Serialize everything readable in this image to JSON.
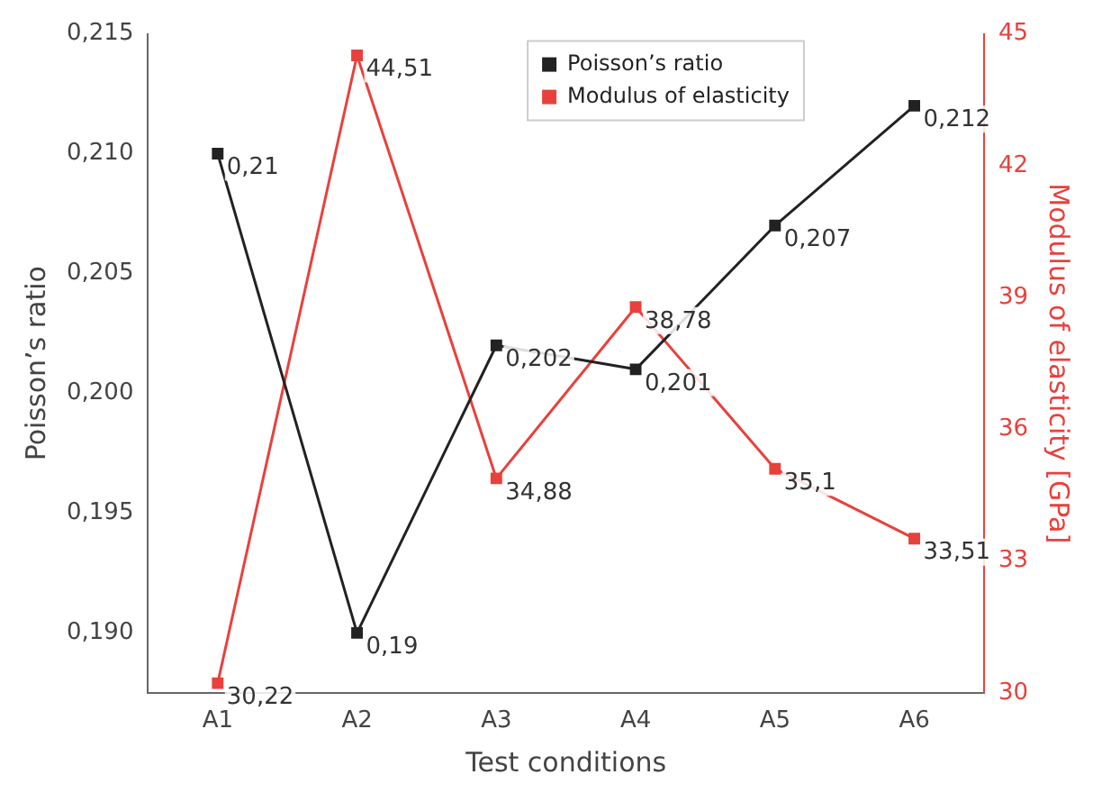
{
  "chart_data": {
    "type": "line",
    "xlabel": "Test conditions",
    "ylabel": "Poisson’s ratio",
    "y2label": "Modulus of elasticity [GPa]",
    "categories": [
      "A1",
      "A2",
      "A3",
      "A4",
      "A5",
      "A6"
    ],
    "series": [
      {
        "name": "Poisson’s ratio",
        "color": "#222222",
        "values": [
          0.21,
          0.19,
          0.202,
          0.201,
          0.207,
          0.212
        ],
        "value_labels": [
          "0,21",
          "0,19",
          "0,202",
          "0,201",
          "0,207",
          "0,212"
        ]
      },
      {
        "name": "Modulus of elasticity",
        "color": "#e8413c",
        "axis": "y2",
        "values": [
          30.22,
          44.51,
          34.88,
          38.78,
          35.1,
          33.51
        ],
        "value_labels": [
          "30,22",
          "44,51",
          "34,88",
          "38,78",
          "35,1",
          "33,51"
        ]
      }
    ],
    "ylim": [
      0.1875,
      0.215
    ],
    "yticks": [
      {
        "value": 0.19,
        "label": "0,190"
      },
      {
        "value": 0.195,
        "label": "0,195"
      },
      {
        "value": 0.2,
        "label": "0,200"
      },
      {
        "value": 0.205,
        "label": "0,205"
      },
      {
        "value": 0.21,
        "label": "0,210"
      },
      {
        "value": 0.215,
        "label": "0,215"
      }
    ],
    "y2lim": [
      30,
      45
    ],
    "y2ticks": [
      30,
      33,
      36,
      39,
      42,
      45
    ],
    "marker": "square",
    "line_style": "solid",
    "grid": false,
    "legend": "top right"
  }
}
